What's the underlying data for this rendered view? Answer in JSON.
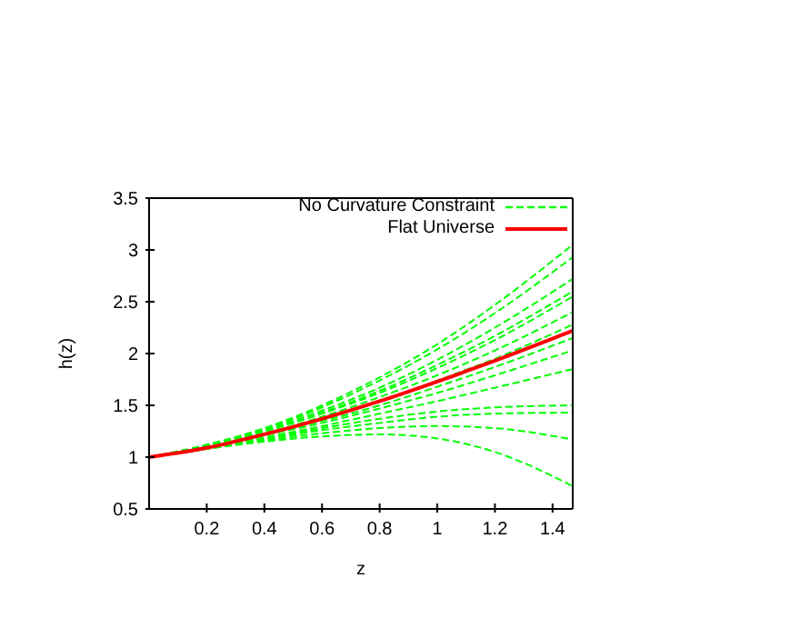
{
  "chart_data": {
    "type": "line",
    "xlabel": "z",
    "ylabel": "h(z)",
    "x": [
      0,
      0.2,
      0.4,
      0.6,
      0.8,
      1.0,
      1.2,
      1.47
    ],
    "xlim": [
      0,
      1.47
    ],
    "xticks": [
      0.2,
      0.4,
      0.6,
      0.8,
      1,
      1.2,
      1.4
    ],
    "ylim": [
      0.5,
      3.5
    ],
    "yticks": [
      0.5,
      1,
      1.5,
      2,
      2.5,
      3,
      3.5
    ],
    "legend": "top right",
    "marker": "none",
    "series": [
      {
        "name": "No Curvature Constraint",
        "color": "#00ff00",
        "line_style": "dashed",
        "values": [
          1,
          1.12,
          1.28,
          1.5,
          1.77,
          2.09,
          2.47,
          3.05
        ]
      },
      {
        "color": "#00ff00",
        "line_style": "dashed",
        "values": [
          1,
          1.11,
          1.27,
          1.48,
          1.74,
          2.04,
          2.39,
          2.93
        ]
      },
      {
        "color": "#00ff00",
        "line_style": "dashed",
        "values": [
          1,
          1.11,
          1.26,
          1.45,
          1.67,
          1.94,
          2.25,
          2.72
        ]
      },
      {
        "color": "#00ff00",
        "line_style": "dashed",
        "values": [
          1,
          1.11,
          1.25,
          1.43,
          1.64,
          1.89,
          2.17,
          2.6
        ]
      },
      {
        "color": "#00ff00",
        "line_style": "dashed",
        "values": [
          1,
          1.11,
          1.25,
          1.42,
          1.62,
          1.86,
          2.13,
          2.55
        ]
      },
      {
        "color": "#00ff00",
        "line_style": "dashed",
        "values": [
          1,
          1.1,
          1.23,
          1.39,
          1.58,
          1.79,
          2.03,
          2.4
        ]
      },
      {
        "color": "#00ff00",
        "line_style": "dashed",
        "values": [
          1,
          1.1,
          1.23,
          1.37,
          1.54,
          1.74,
          1.95,
          2.28
        ]
      },
      {
        "color": "#00ff00",
        "line_style": "dashed",
        "values": [
          1,
          1.1,
          1.22,
          1.35,
          1.5,
          1.68,
          1.87,
          2.15
        ]
      },
      {
        "color": "#00ff00",
        "line_style": "dashed",
        "values": [
          1,
          1.1,
          1.21,
          1.33,
          1.47,
          1.62,
          1.79,
          2.03
        ]
      },
      {
        "color": "#00ff00",
        "line_style": "dashed",
        "values": [
          1,
          1.09,
          1.19,
          1.3,
          1.42,
          1.54,
          1.67,
          1.85
        ]
      },
      {
        "color": "#00ff00",
        "line_style": "dashed",
        "values": [
          1,
          1.08,
          1.18,
          1.28,
          1.37,
          1.44,
          1.48,
          1.5
        ]
      },
      {
        "color": "#00ff00",
        "line_style": "dashed",
        "values": [
          1,
          1.08,
          1.17,
          1.26,
          1.33,
          1.39,
          1.42,
          1.43
        ]
      },
      {
        "color": "#00ff00",
        "line_style": "dashed",
        "values": [
          1,
          1.08,
          1.16,
          1.23,
          1.28,
          1.3,
          1.28,
          1.17
        ]
      },
      {
        "color": "#00ff00",
        "line_style": "dashed",
        "values": [
          1,
          1.08,
          1.15,
          1.2,
          1.22,
          1.18,
          1.05,
          0.72
        ]
      },
      {
        "name": "Flat Universe",
        "color": "#ff0000",
        "line_style": "solid",
        "values": [
          1,
          1.09,
          1.22,
          1.37,
          1.54,
          1.73,
          1.93,
          2.22
        ]
      }
    ]
  }
}
